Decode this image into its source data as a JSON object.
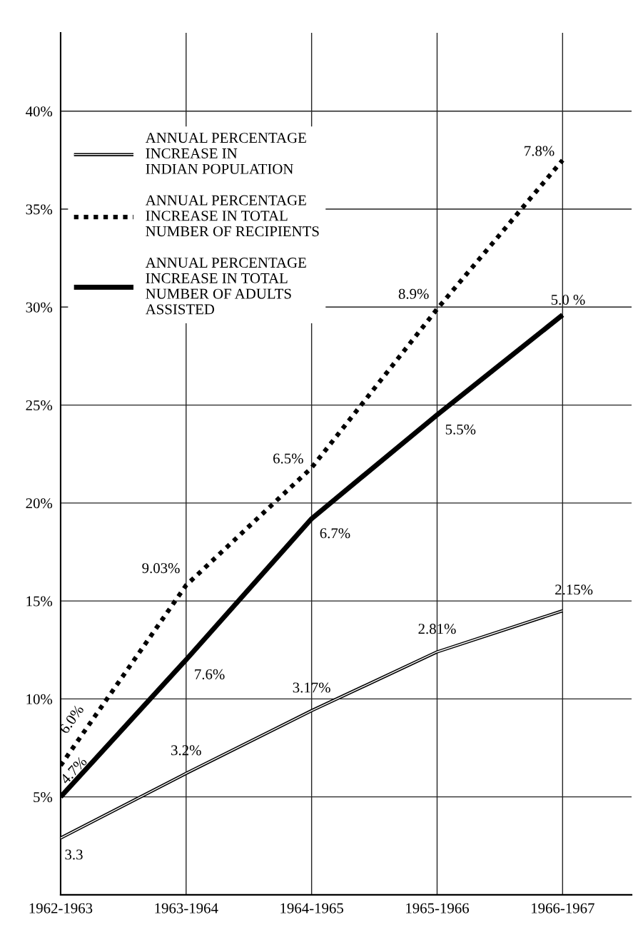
{
  "chart_data": {
    "type": "line",
    "categories": [
      "1962-1963",
      "1963-1964",
      "1964-1965",
      "1965-1966",
      "1966-1967"
    ],
    "series": [
      {
        "name": "ANNUAL PERCENTAGE\nINCREASE IN\nINDIAN POPULATION",
        "color": "#000000",
        "line_style": "solid",
        "values": [
          2.9,
          6.2,
          9.4,
          12.4,
          14.5
        ]
      },
      {
        "name": "ANNUAL PERCENTAGE\nINCREASE IN TOTAL\nNUMBER OF RECIPIENTS",
        "color": "#000000",
        "line_style": "dotted",
        "values": [
          6.6,
          15.8,
          21.8,
          29.9,
          37.5
        ]
      },
      {
        "name": "ANNUAL PERCENTAGE\nINCREASE IN TOTAL\nNUMBER OF ADULTS\nASSISTED",
        "color": "#000000",
        "line_style": "solid",
        "values": [
          5.0,
          12.0,
          19.2,
          24.5,
          29.6
        ]
      }
    ],
    "ylim": [
      0,
      44
    ],
    "yticks": [
      {
        "value": 5,
        "label": "5%"
      },
      {
        "value": 10,
        "label": "10%"
      },
      {
        "value": 15,
        "label": "15%"
      },
      {
        "value": 20,
        "label": "20%"
      },
      {
        "value": 25,
        "label": "25%"
      },
      {
        "value": 30,
        "label": "30%"
      },
      {
        "value": 35,
        "label": "35%"
      },
      {
        "value": 40,
        "label": "40%"
      }
    ],
    "grid": true,
    "legend": "top left",
    "annotations": [
      {
        "text": "3.3",
        "x": "1962-1963",
        "y": 2.9
      },
      {
        "text": "3.2%",
        "x": "1963-1964",
        "y": 6.2
      },
      {
        "text": "3.17%",
        "x": "1964-1965",
        "y": 9.4
      },
      {
        "text": "2.81%",
        "x": "1965-1966",
        "y": 12.4
      },
      {
        "text": "2.15%",
        "x": "1966-1967",
        "y": 14.5
      },
      {
        "text": "6.0%",
        "x": "1962-1963",
        "y": 6.6
      },
      {
        "text": "9.03%",
        "x": "1963-1964",
        "y": 15.8
      },
      {
        "text": "6.5%",
        "x": "1964-1965",
        "y": 21.8
      },
      {
        "text": "8.9%",
        "x": "1965-1966",
        "y": 29.9
      },
      {
        "text": "7.8%",
        "x": "1966-1967",
        "y": 37.5
      },
      {
        "text": "4.7%",
        "x": "1962-1963",
        "y": 5.0
      },
      {
        "text": "7.6%",
        "x": "1963-1964",
        "y": 12.0
      },
      {
        "text": "6.7%",
        "x": "1964-1965",
        "y": 19.2
      },
      {
        "text": "5.5%",
        "x": "1965-1966",
        "y": 24.5
      },
      {
        "text": "5.0 %",
        "x": "1966-1967",
        "y": 29.6
      }
    ]
  }
}
